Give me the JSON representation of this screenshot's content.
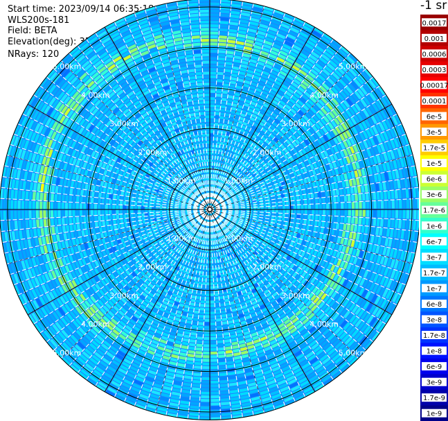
{
  "header": {
    "start_time": "Start time: 2023/09/14 06:35:18",
    "instrument": "WLS200s-181",
    "field": "Field: BETA",
    "elevation": "Elevation(deg): 35.30",
    "nrays": "NRays: 120"
  },
  "chart_data": {
    "type": "heatmap",
    "projection": "polar-ppi",
    "field": "BETA",
    "elevation_deg": 35.3,
    "n_rays": 120,
    "range_rings_km": [
      1,
      2,
      3,
      4,
      5
    ],
    "range_labels": [
      "1.00km",
      "2.00km",
      "3.00km",
      "4.00km",
      "5.00km"
    ],
    "colorbar": {
      "unit": "-1 sr",
      "labels": [
        "0.0017",
        "0.001",
        "0.0006",
        "0.0003",
        "0.00017",
        "0.0001",
        "6e-5",
        "3e-5",
        "1.7e-5",
        "1e-5",
        "6e-6",
        "3e-6",
        "1.7e-6",
        "1e-6",
        "6e-7",
        "3e-7",
        "1.7e-7",
        "1e-7",
        "6e-8",
        "3e-8",
        "1.7e-8",
        "1e-8",
        "6e-9",
        "3e-9",
        "1.7e-9",
        "1e-9"
      ],
      "colors": [
        "#990000",
        "#b30000",
        "#cc0000",
        "#e60000",
        "#ff0000",
        "#ff3300",
        "#ff6600",
        "#ff9900",
        "#ffcc00",
        "#ffff00",
        "#ccff33",
        "#99ff66",
        "#66ff99",
        "#33ffcc",
        "#00ffff",
        "#00ddff",
        "#00bbff",
        "#0099ff",
        "#0077ff",
        "#0055ff",
        "#0033ff",
        "#0011ff",
        "#0000ee",
        "#0000cc",
        "#0000aa",
        "#000088"
      ]
    }
  }
}
